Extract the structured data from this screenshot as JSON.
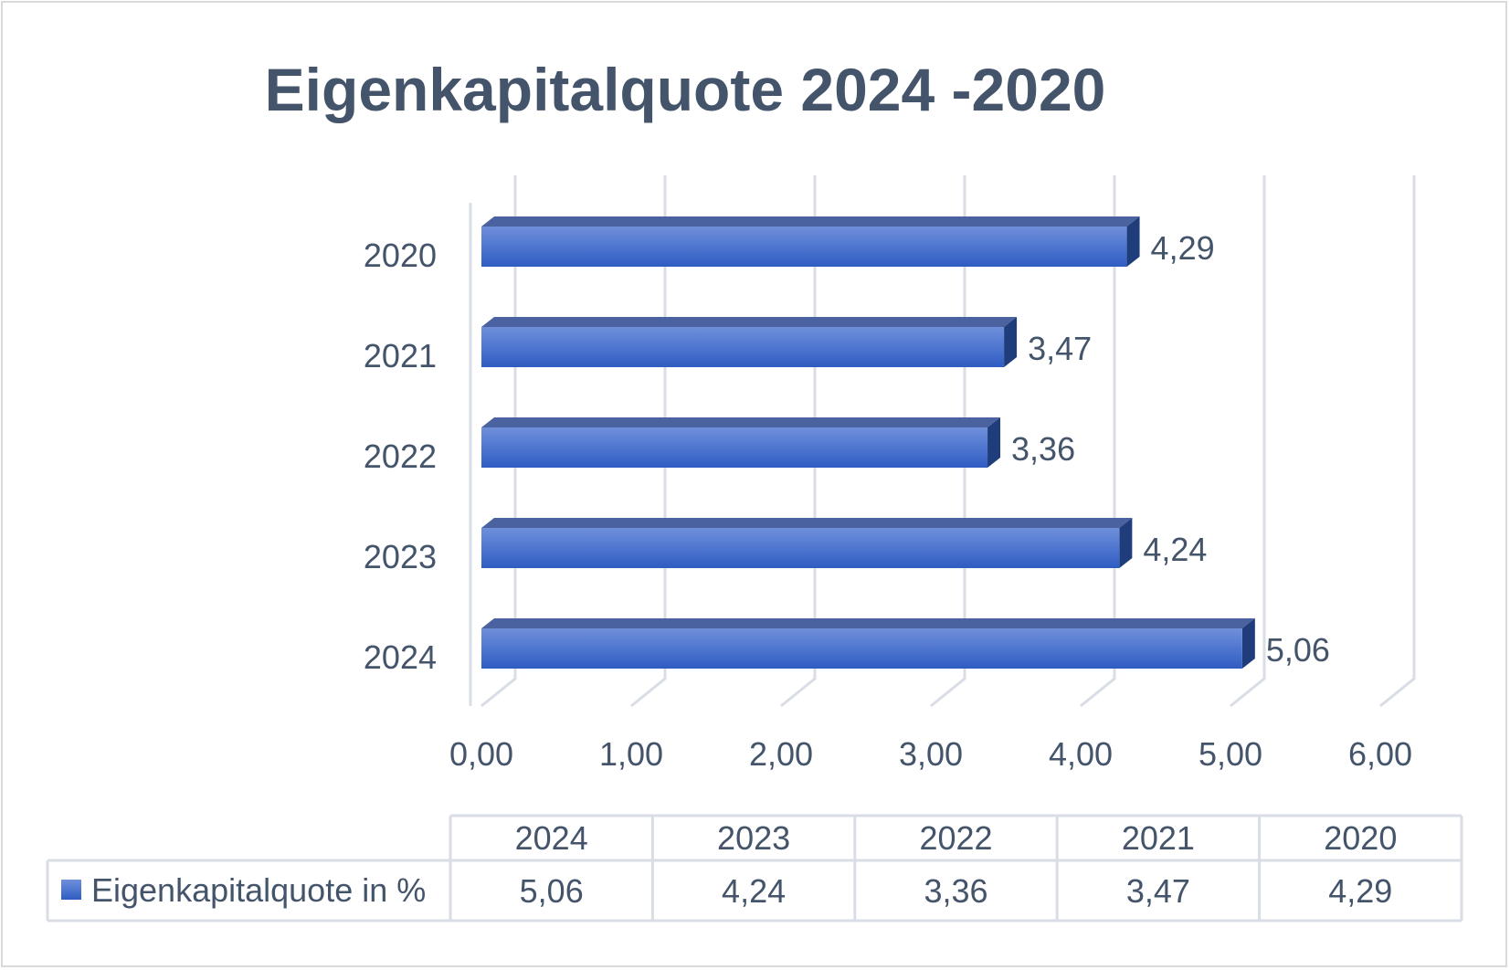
{
  "chart_data": {
    "type": "bar",
    "orientation": "horizontal",
    "title": "Eigenkapitalquote 2024 -2020",
    "categories": [
      "2020",
      "2021",
      "2022",
      "2023",
      "2024"
    ],
    "series": [
      {
        "name": "Eigenkapitalquote in %",
        "values": [
          4.29,
          3.47,
          3.36,
          4.24,
          5.06
        ],
        "value_labels": [
          "4,29",
          "3,47",
          "3,36",
          "4,24",
          "5,06"
        ],
        "color": "#4472c4"
      }
    ],
    "xlim": [
      0,
      6
    ],
    "x_ticks": [
      "0,00",
      "1,00",
      "2,00",
      "3,00",
      "4,00",
      "5,00",
      "6,00"
    ],
    "grid": true,
    "data_table": {
      "columns": [
        "2024",
        "2023",
        "2022",
        "2021",
        "2020"
      ],
      "row_label": "Eigenkapitalquote in %",
      "values": [
        "5,06",
        "4,24",
        "3,36",
        "3,47",
        "4,29"
      ]
    }
  }
}
